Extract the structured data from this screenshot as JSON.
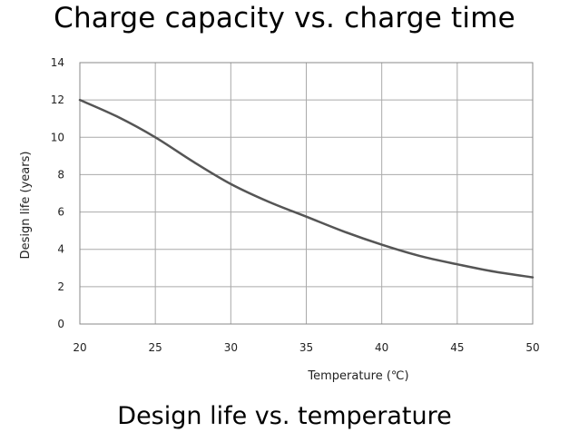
{
  "page": {
    "title": "Charge capacity vs. charge time",
    "caption": "Design life vs. temperature"
  },
  "chart_data": {
    "type": "line",
    "xlabel": "Temperature (℃)",
    "ylabel": "Design life (years)",
    "xlim": [
      20,
      50
    ],
    "ylim": [
      0,
      14
    ],
    "x_ticks": [
      20,
      25,
      30,
      35,
      40,
      45,
      50
    ],
    "y_ticks": [
      0,
      2,
      4,
      6,
      8,
      10,
      12,
      14
    ],
    "grid": true,
    "series": [
      {
        "x": [
          20,
          22.5,
          25,
          27.5,
          30,
          32.5,
          35,
          37.5,
          40,
          42.5,
          45,
          47.5,
          50
        ],
        "y": [
          12.0,
          11.1,
          10.0,
          8.7,
          7.5,
          6.55,
          5.75,
          4.95,
          4.25,
          3.65,
          3.2,
          2.8,
          2.5
        ]
      }
    ],
    "colors": {
      "line": "#555555",
      "grid": "#aaaaaa",
      "axis": "#888888"
    }
  }
}
